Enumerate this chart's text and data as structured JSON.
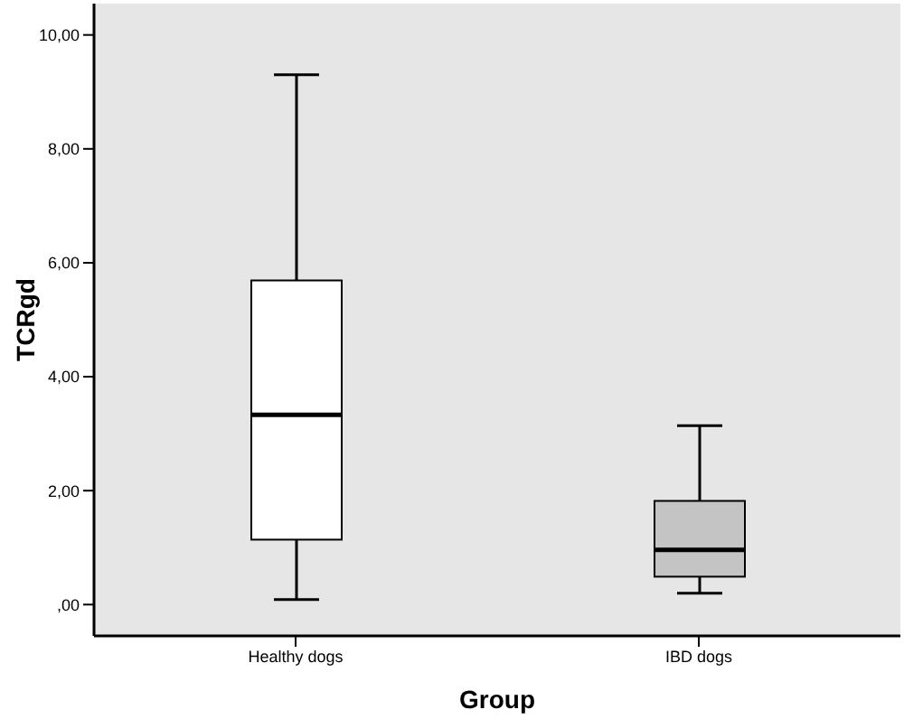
{
  "chart_data": {
    "type": "box",
    "xlabel": "Group",
    "ylabel": "TCRgd",
    "categories": [
      "Healthy dogs",
      "IBD dogs"
    ],
    "colors": [
      "#ffffff",
      "#c4c4c4"
    ],
    "boxes": [
      {
        "low": 0.09,
        "q1": 1.14,
        "median": 3.33,
        "q3": 5.69,
        "high": 9.3
      },
      {
        "low": 0.2,
        "q1": 0.49,
        "median": 0.96,
        "q3": 1.82,
        "high": 3.14
      }
    ],
    "ylim": [
      -0.55,
      10.55
    ],
    "yticks": [
      {
        "value": 0,
        "label": ",00"
      },
      {
        "value": 2,
        "label": "2,00"
      },
      {
        "value": 4,
        "label": "4,00"
      },
      {
        "value": 6,
        "label": "6,00"
      },
      {
        "value": 8,
        "label": "8,00"
      },
      {
        "value": 10,
        "label": "10,00"
      }
    ],
    "grid": false
  }
}
